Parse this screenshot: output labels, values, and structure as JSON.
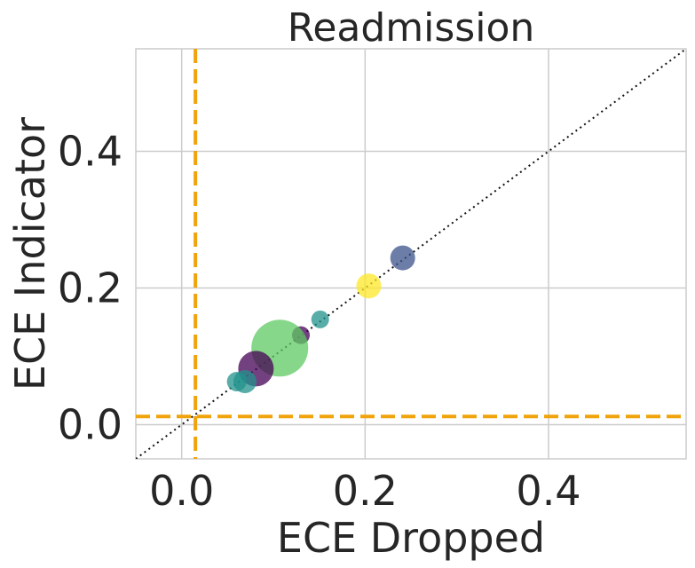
{
  "chart_data": {
    "type": "scatter",
    "title": "Readmission",
    "xlabel": "ECE Dropped",
    "ylabel": "ECE Indicator",
    "xlim": [
      -0.05,
      0.55
    ],
    "ylim": [
      -0.05,
      0.55
    ],
    "xticks": [
      "0.0",
      "0.2",
      "0.4"
    ],
    "yticks": [
      "0.0",
      "0.2",
      "0.4"
    ],
    "xtick_values": [
      0.0,
      0.2,
      0.4
    ],
    "ytick_values": [
      0.0,
      0.2,
      0.4
    ],
    "grid": true,
    "diagonal": {
      "style": "dotted",
      "color": "#111111"
    },
    "reference_lines": {
      "x": 0.015,
      "y": 0.012,
      "color": "#f0a30a",
      "style": "dashed"
    },
    "points": [
      {
        "x": 0.241,
        "y": 0.244,
        "size": 14,
        "color": "#3b528b"
      },
      {
        "x": 0.204,
        "y": 0.203,
        "size": 14,
        "color": "#fde725"
      },
      {
        "x": 0.151,
        "y": 0.154,
        "size": 10,
        "color": "#21918c"
      },
      {
        "x": 0.13,
        "y": 0.131,
        "size": 10,
        "color": "#440154"
      },
      {
        "x": 0.107,
        "y": 0.112,
        "size": 32,
        "color": "#5ec962"
      },
      {
        "x": 0.081,
        "y": 0.082,
        "size": 20,
        "color": "#440154"
      },
      {
        "x": 0.069,
        "y": 0.063,
        "size": 13,
        "color": "#21918c"
      },
      {
        "x": 0.06,
        "y": 0.063,
        "size": 11,
        "color": "#21918c"
      }
    ]
  }
}
